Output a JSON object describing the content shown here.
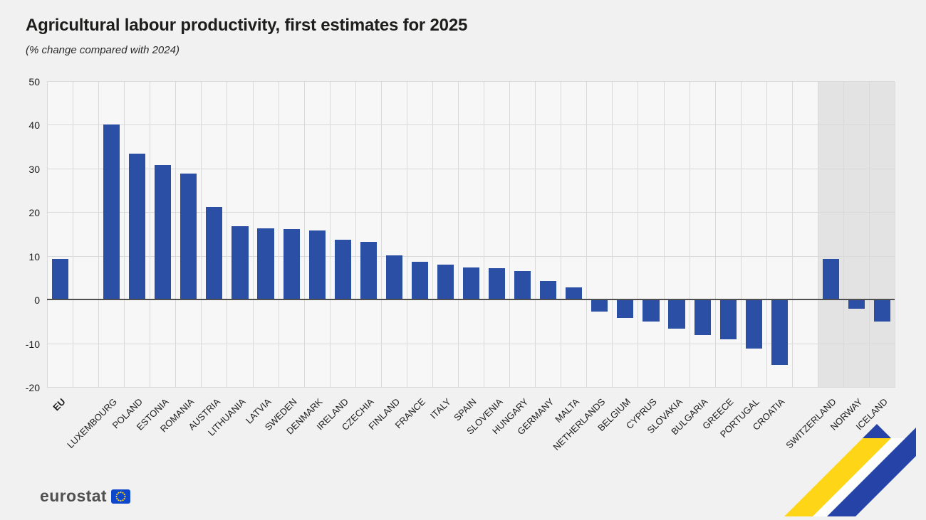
{
  "title": "Agricultural labour productivity, first estimates for 2025",
  "subtitle": "(% change compared with 2024)",
  "logo_text": "eurostat",
  "chart_data": {
    "type": "bar",
    "title": "Agricultural labour productivity, first estimates for 2025",
    "subtitle": "(% change compared with 2024)",
    "ylabel": "% change compared with 2024",
    "ylim": [
      -20,
      50
    ],
    "yticks": [
      50,
      40,
      30,
      20,
      10,
      0,
      -10,
      -20
    ],
    "grid": true,
    "legend": false,
    "bar_color": "#2b4fa5",
    "efta_background": "#e3e3e3",
    "series": [
      {
        "label": "EU",
        "value": 9.5,
        "section": "eu",
        "bold": true
      },
      {
        "label": "LUXEMBOURG",
        "value": 40.3,
        "section": "members"
      },
      {
        "label": "POLAND",
        "value": 33.5,
        "section": "members"
      },
      {
        "label": "ESTONIA",
        "value": 31.0,
        "section": "members"
      },
      {
        "label": "ROMANIA",
        "value": 29.0,
        "section": "members"
      },
      {
        "label": "AUSTRIA",
        "value": 21.3,
        "section": "members"
      },
      {
        "label": "LITHUANIA",
        "value": 17.0,
        "section": "members"
      },
      {
        "label": "LATVIA",
        "value": 16.4,
        "section": "members"
      },
      {
        "label": "SWEDEN",
        "value": 16.3,
        "section": "members"
      },
      {
        "label": "DENMARK",
        "value": 16.0,
        "section": "members"
      },
      {
        "label": "IRELAND",
        "value": 13.8,
        "section": "members"
      },
      {
        "label": "CZECHIA",
        "value": 13.4,
        "section": "members"
      },
      {
        "label": "FINLAND",
        "value": 10.3,
        "section": "members"
      },
      {
        "label": "FRANCE",
        "value": 8.9,
        "section": "members"
      },
      {
        "label": "ITALY",
        "value": 8.1,
        "section": "members"
      },
      {
        "label": "SPAIN",
        "value": 7.5,
        "section": "members"
      },
      {
        "label": "SLOVENIA",
        "value": 7.4,
        "section": "members"
      },
      {
        "label": "HUNGARY",
        "value": 6.7,
        "section": "members"
      },
      {
        "label": "GERMANY",
        "value": 4.5,
        "section": "members"
      },
      {
        "label": "MALTA",
        "value": 3.0,
        "section": "members"
      },
      {
        "label": "NETHERLANDS",
        "value": -2.5,
        "section": "members"
      },
      {
        "label": "BELGIUM",
        "value": -4.0,
        "section": "members"
      },
      {
        "label": "CYPRUS",
        "value": -4.8,
        "section": "members"
      },
      {
        "label": "SLOVAKIA",
        "value": -6.5,
        "section": "members"
      },
      {
        "label": "BULGARIA",
        "value": -8.0,
        "section": "members"
      },
      {
        "label": "GREECE",
        "value": -8.9,
        "section": "members"
      },
      {
        "label": "PORTUGAL",
        "value": -11.0,
        "section": "members"
      },
      {
        "label": "CROATIA",
        "value": -14.8,
        "section": "members"
      },
      {
        "label": "SWITZERLAND",
        "value": 9.5,
        "section": "efta"
      },
      {
        "label": "NORWAY",
        "value": -2.0,
        "section": "efta"
      },
      {
        "label": "ICELAND",
        "value": -4.8,
        "section": "efta"
      }
    ]
  }
}
